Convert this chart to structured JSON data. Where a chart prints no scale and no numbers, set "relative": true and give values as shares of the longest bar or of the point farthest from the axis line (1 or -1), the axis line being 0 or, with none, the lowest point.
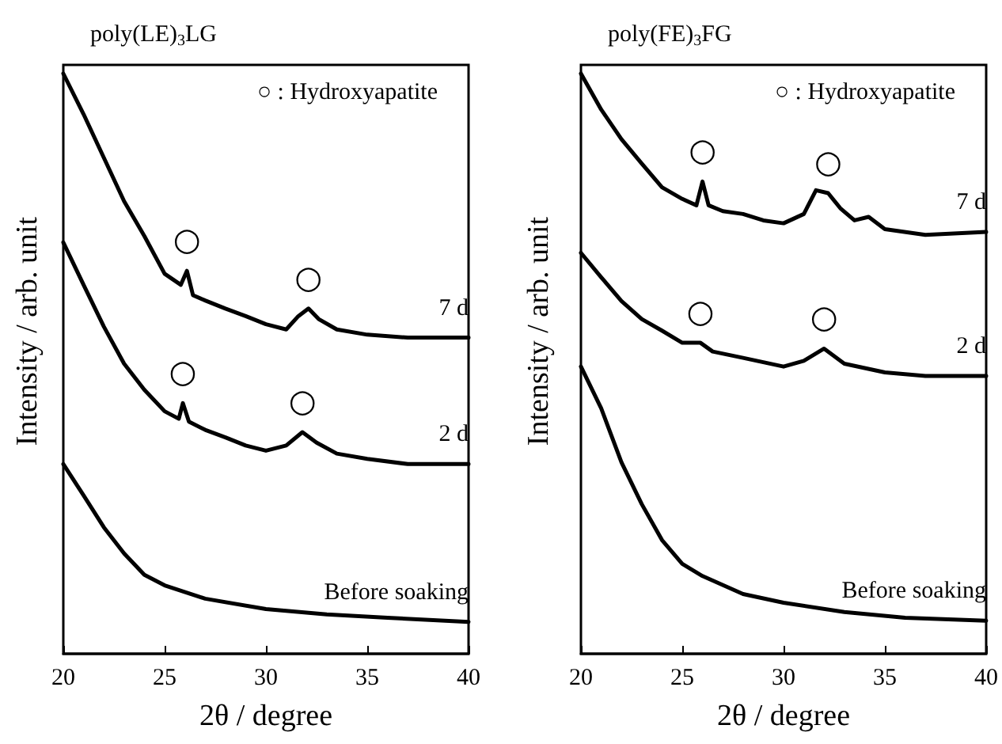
{
  "chart_data": [
    {
      "type": "line",
      "title": "poly(LE)$_{3}$LG",
      "xlabel": "2θ / degree",
      "ylabel": "Intensity / arb. unit",
      "relative": true,
      "xlim": [
        20,
        40
      ],
      "xticks": [
        20,
        25,
        30,
        35,
        40
      ],
      "tick_labels": "x",
      "marker": "none",
      "line_style": "solid",
      "annotations": [
        "○ : Hydroxyapatite",
        {
          "text": "○",
          "x": 26.1,
          "y": 0.66
        },
        {
          "text": "○",
          "x": 32.1,
          "y": 0.595
        },
        {
          "text": "○",
          "x": 25.9,
          "y": 0.432
        },
        {
          "text": "○",
          "x": 31.8,
          "y": 0.382
        }
      ],
      "series": [
        {
          "name": "7 d",
          "color": "#000000",
          "x": [
            20,
            21,
            22,
            23,
            24,
            25,
            25.8,
            26.1,
            26.4,
            27,
            28,
            29,
            30,
            31,
            31.6,
            32.1,
            32.6,
            33.5,
            35,
            37,
            40
          ],
          "values": [
            1.0,
            0.93,
            0.855,
            0.78,
            0.72,
            0.655,
            0.636,
            0.66,
            0.618,
            0.609,
            0.595,
            0.582,
            0.568,
            0.559,
            0.582,
            0.595,
            0.577,
            0.559,
            0.55,
            0.545,
            0.545
          ]
        },
        {
          "name": "2 d",
          "color": "#000000",
          "x": [
            20,
            21,
            22,
            23,
            24,
            25,
            25.7,
            25.9,
            26.2,
            27,
            28,
            29,
            30,
            31,
            31.8,
            32.5,
            33.5,
            35,
            37,
            40
          ],
          "values": [
            0.709,
            0.636,
            0.564,
            0.5,
            0.455,
            0.418,
            0.405,
            0.432,
            0.4,
            0.386,
            0.373,
            0.359,
            0.35,
            0.359,
            0.382,
            0.364,
            0.345,
            0.336,
            0.327,
            0.327
          ]
        },
        {
          "name": "Before soaking",
          "color": "#000000",
          "x": [
            20,
            21,
            22,
            23,
            24,
            25,
            27,
            30,
            33,
            36,
            40
          ],
          "values": [
            0.327,
            0.273,
            0.218,
            0.173,
            0.136,
            0.118,
            0.095,
            0.077,
            0.068,
            0.062,
            0.055
          ]
        }
      ]
    },
    {
      "type": "line",
      "title": "poly(FE)$_{3}$FG",
      "xlabel": "2θ / degree",
      "ylabel": "Intensity / arb. unit",
      "relative": true,
      "xlim": [
        20,
        40
      ],
      "xticks": [
        20,
        25,
        30,
        35,
        40
      ],
      "tick_labels": "x",
      "marker": "none",
      "line_style": "solid",
      "annotations": [
        "○ : Hydroxyapatite",
        {
          "text": "○",
          "x": 26,
          "y": 0.814
        },
        {
          "text": "○",
          "x": 32.2,
          "y": 0.794
        },
        {
          "text": "○",
          "x": 25.9,
          "y": 0.536
        },
        {
          "text": "○",
          "x": 32,
          "y": 0.526
        }
      ],
      "series": [
        {
          "name": "7 d",
          "color": "#000000",
          "x": [
            20,
            21,
            22,
            23,
            24,
            25,
            25.7,
            26,
            26.3,
            27,
            28,
            29,
            30,
            31,
            31.6,
            32.2,
            32.8,
            33.5,
            34.2,
            35,
            37,
            40
          ],
          "values": [
            1.0,
            0.938,
            0.887,
            0.845,
            0.804,
            0.784,
            0.773,
            0.814,
            0.773,
            0.763,
            0.758,
            0.747,
            0.742,
            0.758,
            0.799,
            0.794,
            0.768,
            0.747,
            0.753,
            0.732,
            0.722,
            0.727
          ]
        },
        {
          "name": "2 d",
          "color": "#000000",
          "x": [
            20,
            21,
            22,
            23,
            24,
            25,
            25.9,
            26.5,
            28,
            30,
            31,
            32,
            33,
            35,
            37,
            40
          ],
          "values": [
            0.691,
            0.649,
            0.608,
            0.577,
            0.557,
            0.536,
            0.536,
            0.521,
            0.51,
            0.495,
            0.505,
            0.526,
            0.5,
            0.485,
            0.479,
            0.479
          ]
        },
        {
          "name": "Before soaking",
          "color": "#000000",
          "x": [
            20,
            21,
            22,
            23,
            24,
            25,
            26,
            28,
            30,
            33,
            36,
            40
          ],
          "values": [
            0.495,
            0.423,
            0.33,
            0.258,
            0.196,
            0.155,
            0.134,
            0.103,
            0.088,
            0.072,
            0.062,
            0.057
          ]
        }
      ]
    }
  ]
}
